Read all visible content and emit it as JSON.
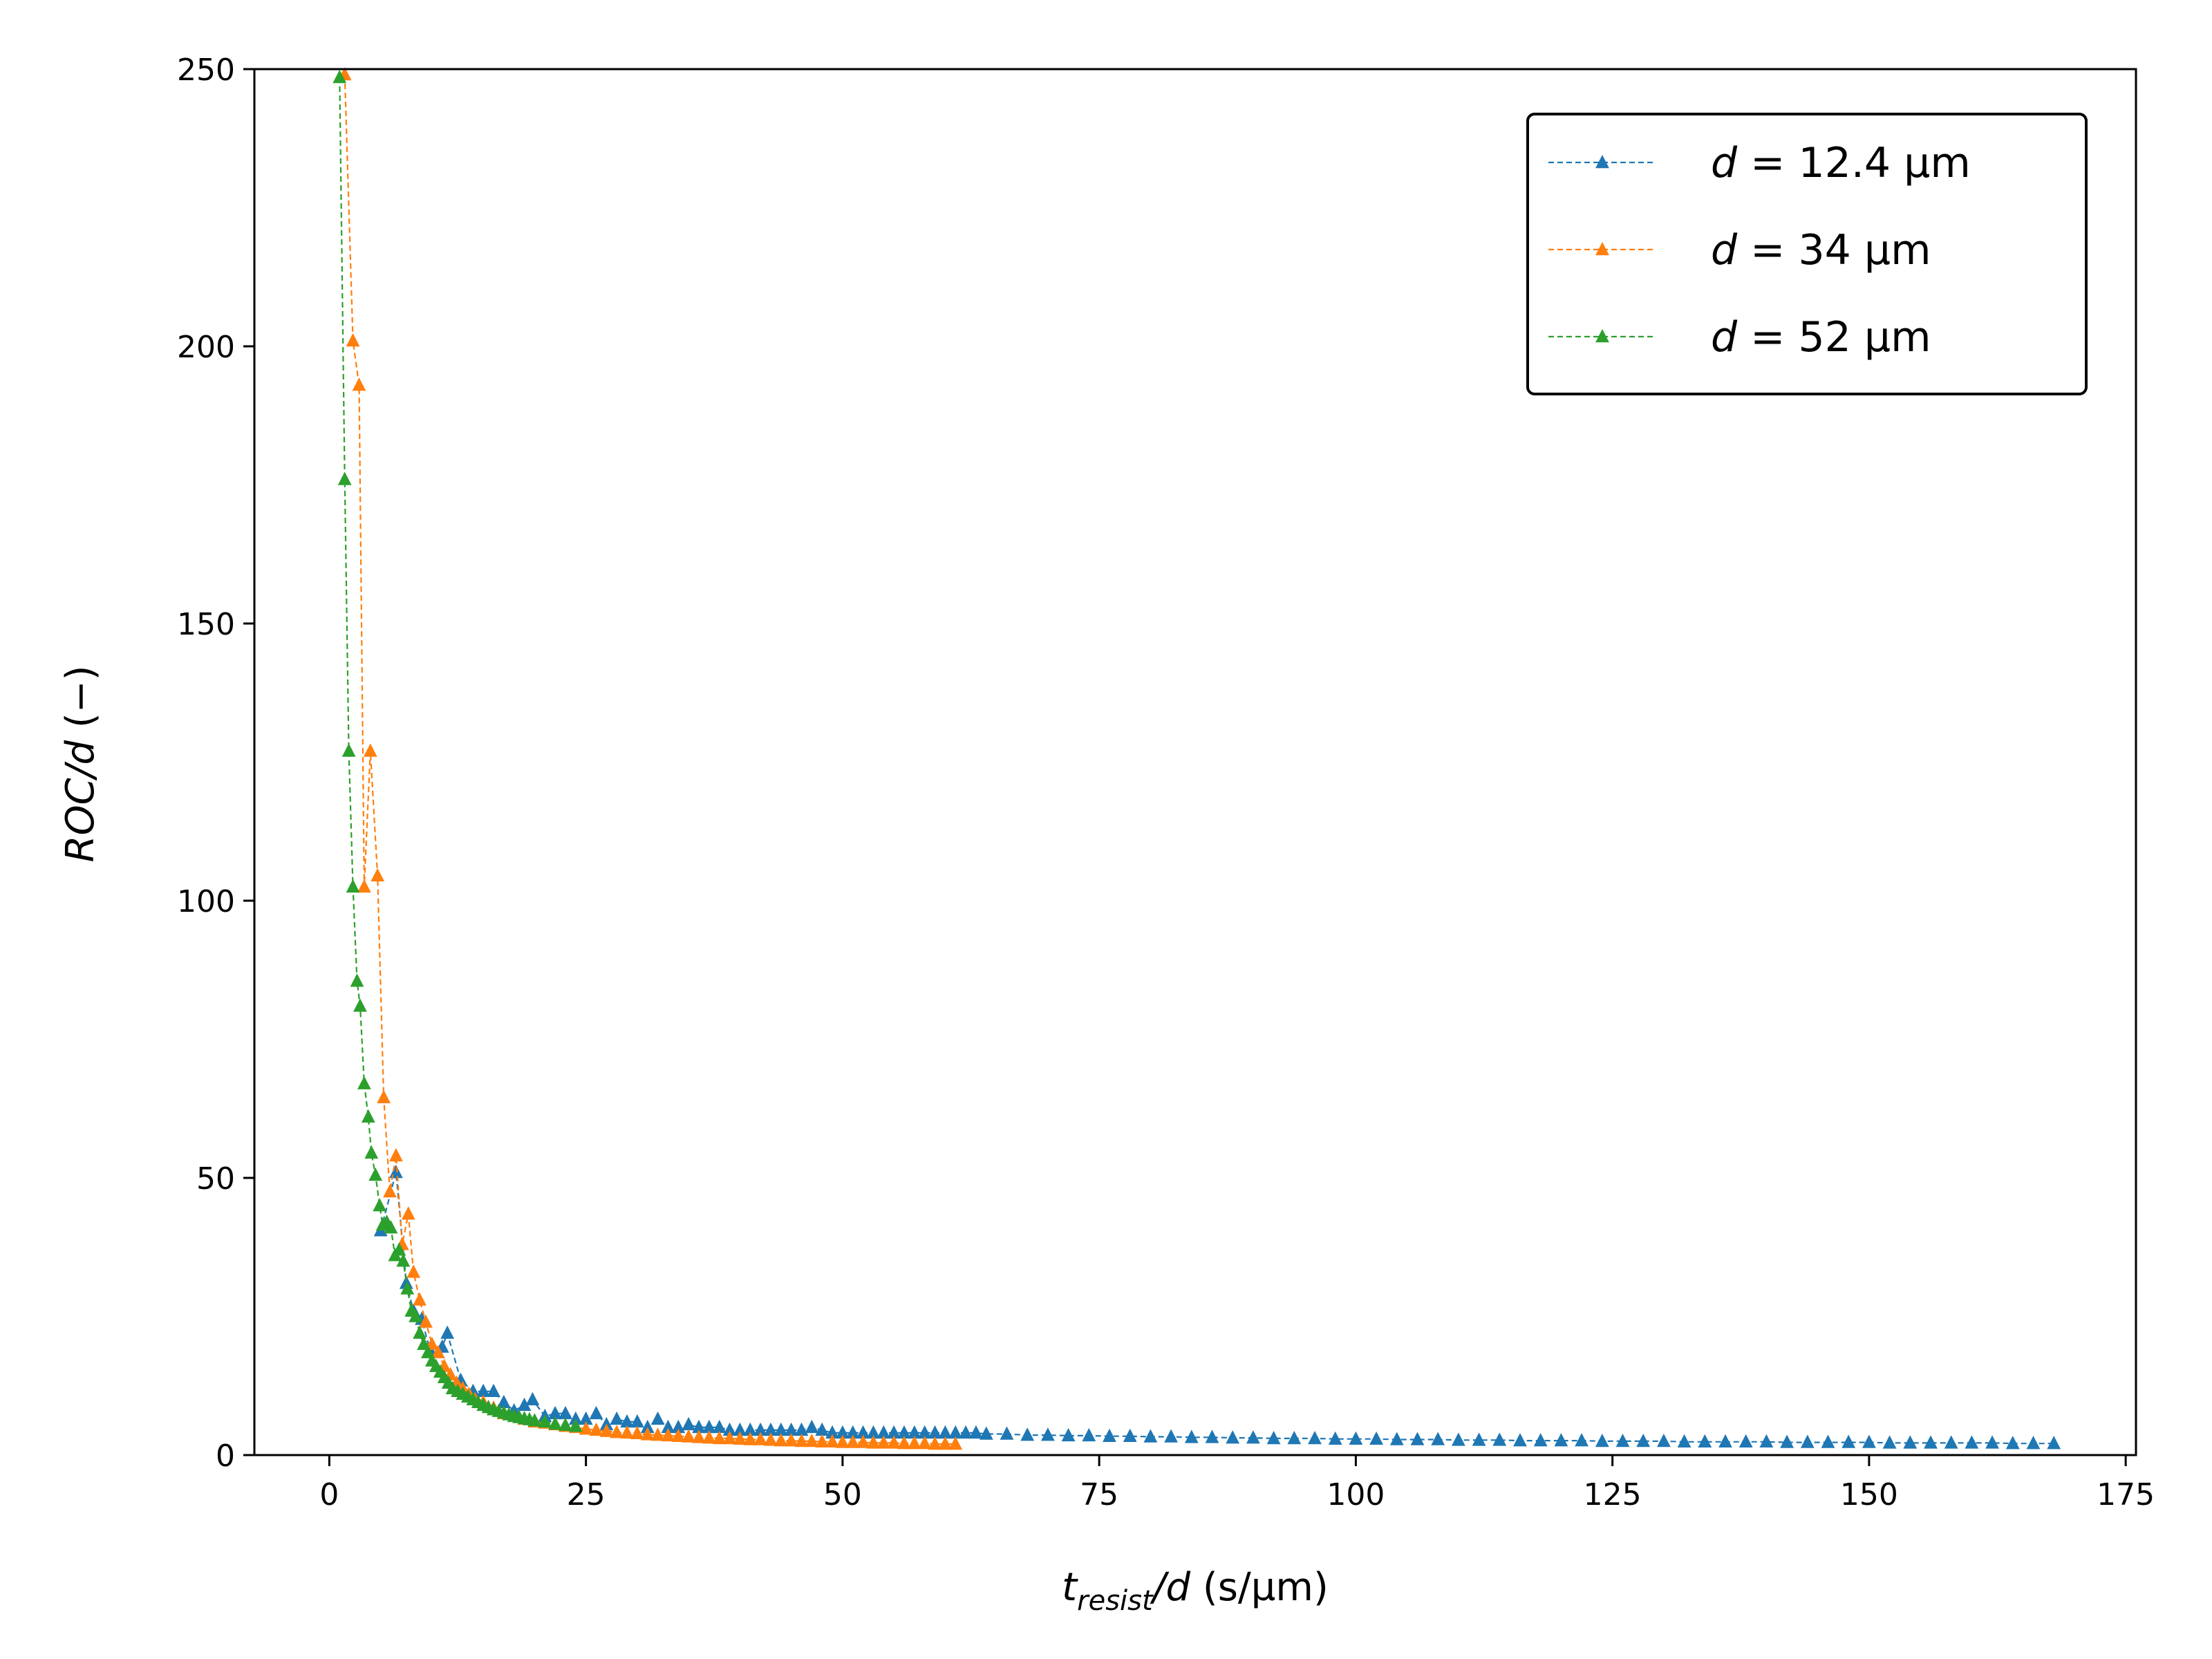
{
  "chart_data": {
    "type": "line",
    "x_title": {
      "base": "t",
      "sub": "resist",
      "rest": "/d",
      "unit": " (s/µm)"
    },
    "y_title": {
      "italic": "ROC/d",
      "unit": " (−)"
    },
    "xlim": [
      -7.3,
      176
    ],
    "ylim": [
      0,
      250
    ],
    "x_ticks": [
      0,
      25,
      50,
      75,
      100,
      125,
      150,
      175
    ],
    "x_tick_labels": [
      "0",
      "25",
      "50",
      "75",
      "100",
      "125",
      "150",
      "175"
    ],
    "y_ticks": [
      0,
      50,
      100,
      150,
      200,
      250
    ],
    "y_tick_labels": [
      "0",
      "50",
      "100",
      "150",
      "200",
      "250"
    ],
    "legend_position": "top-right",
    "series": [
      {
        "name": "d = 12.4 µm",
        "label_italic": "d",
        "label_rest": " = 12.4 µm",
        "color": "#1f77b4",
        "marker": "triangle-up",
        "line_style": "dashed",
        "points": [
          [
            5.0,
            40.5
          ],
          [
            6.5,
            51.0
          ],
          [
            7.5,
            31.0
          ],
          [
            8.2,
            26.0
          ],
          [
            9.0,
            24.5
          ],
          [
            9.8,
            19.0
          ],
          [
            11.0,
            19.5
          ],
          [
            11.5,
            22.0
          ],
          [
            12.8,
            13.5
          ],
          [
            14.0,
            11.5
          ],
          [
            15.0,
            11.5
          ],
          [
            16.0,
            11.5
          ],
          [
            17.0,
            9.5
          ],
          [
            18.0,
            8.0
          ],
          [
            19.0,
            9.0
          ],
          [
            19.8,
            10.0
          ],
          [
            21.0,
            7.0
          ],
          [
            22.0,
            7.5
          ],
          [
            23.0,
            7.5
          ],
          [
            24.0,
            6.5
          ],
          [
            25.0,
            6.5
          ],
          [
            26.0,
            7.5
          ],
          [
            27.0,
            5.5
          ],
          [
            28.0,
            6.5
          ],
          [
            29.0,
            6.0
          ],
          [
            30.0,
            6.0
          ],
          [
            31.0,
            5.0
          ],
          [
            32.0,
            6.5
          ],
          [
            33.0,
            5.0
          ],
          [
            34.0,
            5.0
          ],
          [
            35.0,
            5.5
          ],
          [
            36.0,
            5.0
          ],
          [
            37.0,
            5.0
          ],
          [
            38.0,
            5.0
          ],
          [
            39.0,
            4.5
          ],
          [
            40.0,
            4.5
          ],
          [
            41.0,
            4.5
          ],
          [
            42.0,
            4.5
          ],
          [
            43.0,
            4.5
          ],
          [
            44.0,
            4.5
          ],
          [
            45.0,
            4.5
          ],
          [
            46.0,
            4.5
          ],
          [
            47.0,
            5.0
          ],
          [
            48.0,
            4.5
          ],
          [
            49.0,
            4.0
          ],
          [
            50.0,
            4.0
          ],
          [
            51.0,
            4.0
          ],
          [
            52.0,
            4.0
          ],
          [
            53.0,
            4.0
          ],
          [
            54.0,
            4.0
          ],
          [
            55.0,
            4.0
          ],
          [
            56.0,
            4.0
          ],
          [
            57.0,
            4.0
          ],
          [
            58.0,
            4.0
          ],
          [
            59.0,
            4.0
          ],
          [
            60.0,
            4.0
          ],
          [
            61.0,
            4.0
          ],
          [
            62.0,
            4.0
          ],
          [
            63.0,
            4.0
          ],
          [
            64.0,
            3.8
          ],
          [
            66.0,
            3.8
          ],
          [
            68.0,
            3.6
          ],
          [
            70.0,
            3.6
          ],
          [
            72.0,
            3.5
          ],
          [
            74.0,
            3.5
          ],
          [
            76.0,
            3.4
          ],
          [
            78.0,
            3.4
          ],
          [
            80.0,
            3.3
          ],
          [
            82.0,
            3.3
          ],
          [
            84.0,
            3.2
          ],
          [
            86.0,
            3.2
          ],
          [
            88.0,
            3.1
          ],
          [
            90.0,
            3.1
          ],
          [
            92.0,
            3.0
          ],
          [
            94.0,
            3.0
          ],
          [
            96.0,
            3.0
          ],
          [
            98.0,
            2.9
          ],
          [
            100.0,
            2.9
          ],
          [
            102.0,
            2.9
          ],
          [
            104.0,
            2.8
          ],
          [
            106.0,
            2.8
          ],
          [
            108.0,
            2.8
          ],
          [
            110.0,
            2.7
          ],
          [
            112.0,
            2.7
          ],
          [
            114.0,
            2.7
          ],
          [
            116.0,
            2.6
          ],
          [
            118.0,
            2.6
          ],
          [
            120.0,
            2.6
          ],
          [
            122.0,
            2.6
          ],
          [
            124.0,
            2.5
          ],
          [
            126.0,
            2.5
          ],
          [
            128.0,
            2.5
          ],
          [
            130.0,
            2.5
          ],
          [
            132.0,
            2.4
          ],
          [
            134.0,
            2.4
          ],
          [
            136.0,
            2.4
          ],
          [
            138.0,
            2.4
          ],
          [
            140.0,
            2.4
          ],
          [
            142.0,
            2.3
          ],
          [
            144.0,
            2.3
          ],
          [
            146.0,
            2.3
          ],
          [
            148.0,
            2.3
          ],
          [
            150.0,
            2.3
          ],
          [
            152.0,
            2.2
          ],
          [
            154.0,
            2.2
          ],
          [
            156.0,
            2.2
          ],
          [
            158.0,
            2.2
          ],
          [
            160.0,
            2.2
          ],
          [
            162.0,
            2.2
          ],
          [
            164.0,
            2.1
          ],
          [
            166.0,
            2.1
          ],
          [
            168.0,
            2.1
          ]
        ]
      },
      {
        "name": "d = 34 µm",
        "label_italic": "d",
        "label_rest": " = 34 µm",
        "color": "#ff7f0e",
        "marker": "triangle-up",
        "line_style": "dashed",
        "points": [
          [
            1.5,
            249.0
          ],
          [
            2.3,
            201.0
          ],
          [
            2.9,
            193.0
          ],
          [
            3.4,
            102.5
          ],
          [
            4.0,
            127.0
          ],
          [
            4.7,
            104.5
          ],
          [
            5.3,
            64.5
          ],
          [
            5.9,
            47.5
          ],
          [
            6.5,
            54.0
          ],
          [
            7.1,
            38.0
          ],
          [
            7.7,
            43.5
          ],
          [
            8.2,
            33.0
          ],
          [
            8.8,
            28.0
          ],
          [
            9.4,
            24.0
          ],
          [
            10.0,
            20.0
          ],
          [
            10.6,
            18.5
          ],
          [
            11.2,
            16.0
          ],
          [
            11.8,
            14.5
          ],
          [
            12.4,
            13.0
          ],
          [
            13.0,
            12.0
          ],
          [
            13.6,
            11.0
          ],
          [
            14.2,
            10.0
          ],
          [
            15.0,
            9.5
          ],
          [
            16.0,
            8.5
          ],
          [
            17.0,
            7.5
          ],
          [
            18.0,
            7.0
          ],
          [
            19.0,
            6.5
          ],
          [
            20.0,
            6.0
          ],
          [
            21.0,
            5.8
          ],
          [
            22.0,
            5.5
          ],
          [
            23.0,
            5.2
          ],
          [
            24.0,
            5.0
          ],
          [
            25.0,
            4.7
          ],
          [
            26.0,
            4.5
          ],
          [
            27.0,
            4.3
          ],
          [
            28.0,
            4.1
          ],
          [
            29.0,
            4.0
          ],
          [
            30.0,
            3.9
          ],
          [
            31.0,
            3.7
          ],
          [
            32.0,
            3.6
          ],
          [
            33.0,
            3.5
          ],
          [
            34.0,
            3.4
          ],
          [
            35.0,
            3.3
          ],
          [
            36.0,
            3.2
          ],
          [
            37.0,
            3.1
          ],
          [
            38.0,
            3.0
          ],
          [
            39.0,
            3.0
          ],
          [
            40.0,
            2.9
          ],
          [
            41.0,
            2.8
          ],
          [
            42.0,
            2.8
          ],
          [
            43.0,
            2.7
          ],
          [
            44.0,
            2.6
          ],
          [
            45.0,
            2.6
          ],
          [
            46.0,
            2.5
          ],
          [
            47.0,
            2.5
          ],
          [
            48.0,
            2.4
          ],
          [
            49.0,
            2.4
          ],
          [
            50.0,
            2.3
          ],
          [
            51.0,
            2.3
          ],
          [
            52.0,
            2.3
          ],
          [
            53.0,
            2.2
          ],
          [
            54.0,
            2.2
          ],
          [
            55.0,
            2.2
          ],
          [
            56.0,
            2.1
          ],
          [
            57.0,
            2.1
          ],
          [
            58.0,
            2.1
          ],
          [
            59.0,
            2.0
          ],
          [
            60.0,
            2.0
          ],
          [
            61.0,
            2.0
          ]
        ]
      },
      {
        "name": "d = 52 µm",
        "label_italic": "d",
        "label_rest": " = 52 µm",
        "color": "#2ca02c",
        "marker": "triangle-up",
        "line_style": "dashed",
        "points": [
          [
            1.0,
            248.5
          ],
          [
            1.5,
            176.0
          ],
          [
            1.9,
            127.0
          ],
          [
            2.3,
            102.5
          ],
          [
            2.7,
            85.5
          ],
          [
            3.0,
            81.0
          ],
          [
            3.4,
            67.0
          ],
          [
            3.8,
            61.0
          ],
          [
            4.1,
            54.5
          ],
          [
            4.5,
            50.5
          ],
          [
            4.9,
            45.0
          ],
          [
            5.2,
            41.5
          ],
          [
            5.6,
            42.0
          ],
          [
            6.0,
            41.0
          ],
          [
            6.4,
            36.0
          ],
          [
            6.8,
            37.0
          ],
          [
            7.2,
            35.0
          ],
          [
            7.6,
            30.0
          ],
          [
            8.0,
            26.0
          ],
          [
            8.4,
            25.0
          ],
          [
            8.8,
            22.0
          ],
          [
            9.2,
            20.0
          ],
          [
            9.6,
            18.5
          ],
          [
            10.0,
            17.0
          ],
          [
            10.4,
            16.0
          ],
          [
            10.8,
            15.0
          ],
          [
            11.2,
            14.0
          ],
          [
            11.6,
            13.0
          ],
          [
            12.0,
            12.0
          ],
          [
            12.5,
            11.5
          ],
          [
            13.0,
            11.0
          ],
          [
            13.5,
            10.5
          ],
          [
            14.0,
            10.0
          ],
          [
            14.5,
            9.5
          ],
          [
            15.0,
            9.0
          ],
          [
            15.5,
            8.6
          ],
          [
            16.0,
            8.2
          ],
          [
            16.5,
            7.9
          ],
          [
            17.0,
            7.6
          ],
          [
            17.5,
            7.3
          ],
          [
            18.0,
            7.0
          ],
          [
            18.5,
            6.8
          ],
          [
            19.0,
            6.6
          ],
          [
            19.5,
            6.4
          ],
          [
            20.0,
            6.2
          ],
          [
            21.0,
            6.0
          ],
          [
            22.0,
            5.6
          ],
          [
            23.0,
            5.4
          ],
          [
            24.0,
            5.2
          ]
        ]
      }
    ]
  }
}
